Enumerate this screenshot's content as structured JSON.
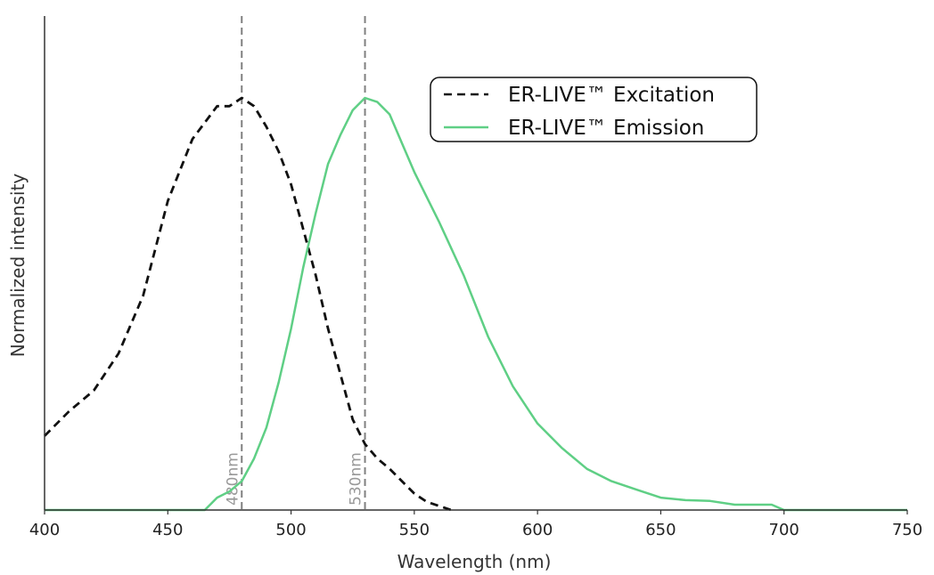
{
  "chart_data": {
    "type": "line",
    "title": "",
    "xlabel": "Wavelength (nm)",
    "ylabel": "Normalized intensity",
    "xlim": [
      400,
      750
    ],
    "ylim": [
      0,
      1
    ],
    "xticks": [
      400,
      450,
      500,
      550,
      600,
      650,
      700,
      750
    ],
    "xtick_labels": [
      "400",
      "450",
      "500",
      "550",
      "600",
      "650",
      "700",
      "750"
    ],
    "grid": false,
    "legend_position": "top-right",
    "colors": {
      "excitation": "#111111",
      "emission": "#5fcf85",
      "marker": "#808080"
    },
    "reference_lines": [
      {
        "x": 480,
        "label": "480nm"
      },
      {
        "x": 530,
        "label": "530nm"
      }
    ],
    "series": [
      {
        "name": "ER-LIVE™ Excitation",
        "style": "dashed",
        "x": [
          400,
          410,
          420,
          430,
          440,
          450,
          460,
          470,
          475,
          480,
          485,
          490,
          495,
          500,
          505,
          510,
          515,
          520,
          525,
          530,
          535,
          540,
          545,
          550,
          555,
          565
        ],
        "y": [
          0.18,
          0.24,
          0.29,
          0.38,
          0.52,
          0.75,
          0.9,
          0.98,
          0.98,
          1.0,
          0.98,
          0.93,
          0.87,
          0.79,
          0.68,
          0.57,
          0.44,
          0.33,
          0.22,
          0.16,
          0.125,
          0.1,
          0.07,
          0.04,
          0.02,
          0
        ]
      },
      {
        "name": "ER-LIVE™ Emission",
        "style": "solid",
        "x": [
          400,
          465,
          470,
          475,
          480,
          485,
          490,
          495,
          500,
          505,
          510,
          515,
          520,
          525,
          530,
          535,
          540,
          545,
          550,
          560,
          570,
          580,
          590,
          600,
          610,
          620,
          630,
          640,
          650,
          660,
          670,
          680,
          695,
          700,
          750
        ],
        "y": [
          0,
          0,
          0.03,
          0.045,
          0.07,
          0.125,
          0.2,
          0.31,
          0.44,
          0.59,
          0.72,
          0.84,
          0.91,
          0.97,
          1.0,
          0.99,
          0.96,
          0.89,
          0.82,
          0.7,
          0.57,
          0.42,
          0.3,
          0.21,
          0.15,
          0.1,
          0.07,
          0.05,
          0.03,
          0.024,
          0.022,
          0.013,
          0.013,
          0,
          0
        ]
      }
    ]
  }
}
